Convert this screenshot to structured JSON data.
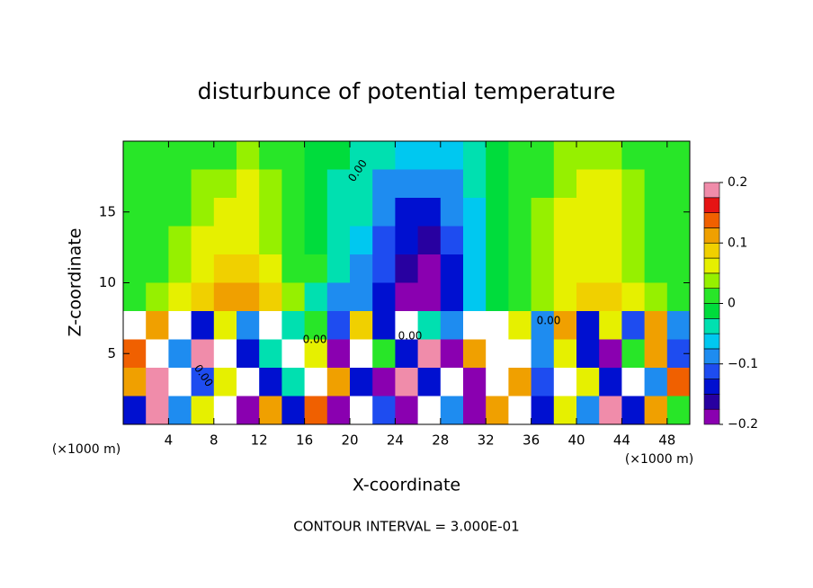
{
  "chart_data": {
    "type": "heatmap",
    "title": "disturbunce of potential temperature",
    "xlabel": "X-coordinate",
    "ylabel": "Z-coordinate",
    "x_unit_left": "(×1000 m)",
    "x_unit_right": "(×1000 m)",
    "footer": "CONTOUR INTERVAL = 3.000E-01",
    "xlim": [
      0,
      50
    ],
    "ylim": [
      0,
      20
    ],
    "xticks": [
      4,
      8,
      12,
      16,
      20,
      24,
      28,
      32,
      36,
      40,
      44,
      48
    ],
    "yticks": [
      5,
      10,
      15
    ],
    "x": [
      1,
      3,
      5,
      7,
      9,
      11,
      13,
      15,
      17,
      19,
      21,
      23,
      25,
      27,
      29,
      31,
      33,
      35,
      37,
      39,
      41,
      43,
      45,
      47,
      49
    ],
    "y": [
      19,
      17,
      15,
      13,
      11,
      9,
      7,
      5,
      3,
      1
    ],
    "z": [
      [
        0.01,
        0.01,
        0.01,
        0.01,
        0.02,
        0.03,
        0.02,
        0.0,
        -0.01,
        -0.02,
        -0.04,
        -0.05,
        -0.06,
        -0.07,
        -0.06,
        -0.04,
        -0.01,
        0.01,
        0.02,
        0.03,
        0.04,
        0.03,
        0.02,
        0.02,
        0.01
      ],
      [
        0.0,
        0.01,
        0.02,
        0.03,
        0.04,
        0.05,
        0.03,
        0.01,
        -0.01,
        -0.03,
        -0.05,
        -0.08,
        -0.1,
        -0.1,
        -0.08,
        -0.05,
        -0.02,
        0.01,
        0.02,
        0.04,
        0.05,
        0.06,
        0.04,
        0.02,
        0.01
      ],
      [
        0.01,
        0.01,
        0.02,
        0.04,
        0.05,
        0.06,
        0.04,
        0.01,
        -0.01,
        -0.03,
        -0.05,
        -0.1,
        -0.13,
        -0.14,
        -0.1,
        -0.06,
        -0.02,
        0.01,
        0.03,
        0.05,
        0.06,
        0.06,
        0.04,
        0.02,
        0.01
      ],
      [
        0.01,
        0.02,
        0.03,
        0.05,
        0.07,
        0.07,
        0.04,
        0.01,
        -0.01,
        -0.03,
        -0.06,
        -0.11,
        -0.15,
        -0.16,
        -0.12,
        -0.06,
        -0.02,
        0.01,
        0.03,
        0.05,
        0.06,
        0.06,
        0.04,
        0.02,
        0.02
      ],
      [
        0.02,
        0.02,
        0.03,
        0.06,
        0.08,
        0.09,
        0.06,
        0.02,
        0.0,
        -0.05,
        -0.08,
        -0.12,
        -0.17,
        -0.18,
        -0.13,
        -0.06,
        -0.02,
        0.01,
        0.03,
        0.05,
        0.07,
        0.06,
        0.04,
        0.02,
        0.02
      ],
      [
        0.02,
        0.03,
        0.05,
        0.08,
        0.11,
        0.12,
        0.08,
        0.03,
        -0.03,
        -0.08,
        -0.1,
        -0.13,
        -0.19,
        -0.2,
        -0.14,
        -0.07,
        -0.02,
        0.01,
        0.04,
        0.06,
        0.09,
        0.08,
        0.05,
        0.03,
        0.02
      ],
      [
        0.25,
        0.1,
        0.25,
        -0.15,
        0.05,
        -0.1,
        0.25,
        -0.05,
        0.0,
        -0.12,
        0.08,
        -0.15,
        0.25,
        -0.05,
        -0.1,
        0.25,
        0.25,
        0.05,
        -0.1,
        0.1,
        -0.15,
        0.05,
        -0.12,
        0.1,
        -0.1
      ],
      [
        0.15,
        0.25,
        -0.1,
        0.2,
        0.25,
        -0.15,
        -0.05,
        0.25,
        0.05,
        -0.2,
        0.25,
        0.0,
        -0.15,
        0.2,
        -0.2,
        0.1,
        0.25,
        0.25,
        -0.1,
        0.05,
        -0.15,
        -0.2,
        0.0,
        0.1,
        -0.12
      ],
      [
        0.1,
        0.2,
        0.25,
        -0.12,
        0.05,
        0.25,
        -0.15,
        -0.05,
        0.25,
        0.1,
        -0.15,
        -0.2,
        0.2,
        -0.15,
        0.25,
        -0.2,
        0.25,
        0.1,
        -0.12,
        0.25,
        0.05,
        -0.15,
        0.25,
        -0.1,
        0.15
      ],
      [
        -0.15,
        0.2,
        -0.1,
        0.05,
        0.25,
        -0.2,
        0.1,
        -0.15,
        0.15,
        -0.2,
        0.25,
        -0.12,
        -0.2,
        0.25,
        -0.1,
        -0.2,
        0.1,
        0.25,
        -0.15,
        0.05,
        -0.1,
        0.2,
        -0.15,
        0.1,
        0.0
      ]
    ],
    "colorbar_lim": [
      -0.2,
      0.2
    ],
    "colorbar_ticks": [
      {
        "value": -0.2,
        "label": "−0.2"
      },
      {
        "value": -0.1,
        "label": "−0.1"
      },
      0,
      0.1,
      0.2
    ],
    "colorscale": [
      "#8a00b0",
      "#2800a0",
      "#0010d0",
      "#1e4cf0",
      "#1e8cf0",
      "#00c8f0",
      "#00e0b0",
      "#00dc3c",
      "#28e628",
      "#96f000",
      "#e6f000",
      "#f0d000",
      "#f0a000",
      "#f06000",
      "#e61414",
      "#f08caa"
    ],
    "over_color": "#ffffff",
    "contour_labels": [
      "0.00",
      "0.00",
      "0.00",
      "0.00",
      "0.00"
    ]
  }
}
